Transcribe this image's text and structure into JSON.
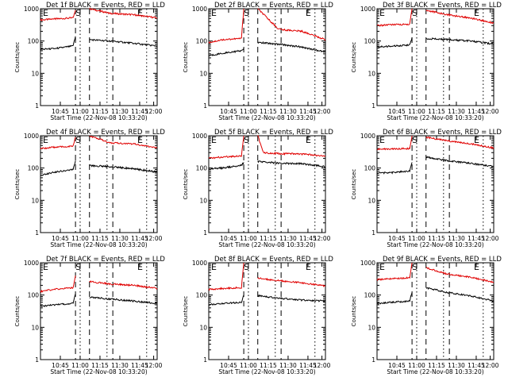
{
  "chart_data": [
    {
      "type": "line",
      "title": "Det 1f BLACK = Events, RED = LLD",
      "xlabel": "Start Time (22-Nov-08 10:33:20)",
      "ylabel": "Counts/sec",
      "yscale": "log",
      "ylim": [
        1,
        1000
      ],
      "xticks": [
        "10:45",
        "11:00",
        "11:15",
        "11:30",
        "11:45",
        "12:00"
      ],
      "yticks": [
        "1",
        "10",
        "100",
        "1000"
      ],
      "markers": [
        "E",
        "S",
        "E"
      ],
      "series": [
        {
          "name": "LLD",
          "color": "#e00000",
          "segments": [
            [
              [
                0,
                450
              ],
              [
                12,
                480
              ],
              [
                28,
                520
              ],
              [
                30,
                900
              ]
            ],
            [
              [
                42,
                1000
              ],
              [
                60,
                720
              ],
              [
                80,
                650
              ],
              [
                100,
                520
              ]
            ]
          ]
        },
        {
          "name": "Events",
          "color": "#000000",
          "segments": [
            [
              [
                0,
                55
              ],
              [
                12,
                58
              ],
              [
                28,
                70
              ],
              [
                30,
                140
              ]
            ],
            [
              [
                42,
                110
              ],
              [
                60,
                100
              ],
              [
                80,
                85
              ],
              [
                100,
                70
              ]
            ]
          ]
        }
      ]
    },
    {
      "type": "line",
      "title": "Det 2f BLACK = Events, RED = LLD",
      "xlabel": "Start Time (22-Nov-08 10:33:20)",
      "ylabel": "Counts/sec",
      "yscale": "log",
      "ylim": [
        1,
        1000
      ],
      "xticks": [
        "10:45",
        "11:00",
        "11:15",
        "11:30",
        "11:45",
        "12:00"
      ],
      "yticks": [
        "1",
        "10",
        "100",
        "1000"
      ],
      "markers": [
        "E",
        "S",
        "E"
      ],
      "series": [
        {
          "name": "LLD",
          "color": "#e00000",
          "segments": [
            [
              [
                0,
                90
              ],
              [
                12,
                110
              ],
              [
                28,
                120
              ],
              [
                30,
                1000
              ]
            ],
            [
              [
                42,
                1000
              ],
              [
                60,
                230
              ],
              [
                80,
                200
              ],
              [
                100,
                110
              ]
            ]
          ]
        },
        {
          "name": "Events",
          "color": "#000000",
          "segments": [
            [
              [
                0,
                35
              ],
              [
                12,
                42
              ],
              [
                28,
                50
              ],
              [
                30,
                60
              ]
            ],
            [
              [
                42,
                90
              ],
              [
                60,
                80
              ],
              [
                80,
                65
              ],
              [
                100,
                45
              ]
            ]
          ]
        }
      ]
    },
    {
      "type": "line",
      "title": "Det 3f BLACK = Events, RED = LLD",
      "xlabel": "Start Time (22-Nov-08 10:33:20)",
      "ylabel": "Counts/sec",
      "yscale": "log",
      "ylim": [
        1,
        1000
      ],
      "xticks": [
        "10:45",
        "11:00",
        "11:15",
        "11:30",
        "11:45",
        "12:00"
      ],
      "yticks": [
        "1",
        "10",
        "100",
        "1000"
      ],
      "markers": [
        "E",
        "S",
        "E"
      ],
      "series": [
        {
          "name": "LLD",
          "color": "#e00000",
          "segments": [
            [
              [
                0,
                300
              ],
              [
                12,
                320
              ],
              [
                28,
                330
              ],
              [
                30,
                1000
              ]
            ],
            [
              [
                42,
                900
              ],
              [
                60,
                650
              ],
              [
                80,
                520
              ],
              [
                100,
                360
              ]
            ]
          ]
        },
        {
          "name": "Events",
          "color": "#000000",
          "segments": [
            [
              [
                0,
                65
              ],
              [
                12,
                70
              ],
              [
                28,
                75
              ],
              [
                30,
                130
              ]
            ],
            [
              [
                42,
                120
              ],
              [
                60,
                110
              ],
              [
                80,
                100
              ],
              [
                100,
                80
              ]
            ]
          ]
        }
      ]
    },
    {
      "type": "line",
      "title": "Det 4f BLACK = Events, RED = LLD",
      "xlabel": "Start Time (22-Nov-08 10:33:20)",
      "ylabel": "Counts/sec",
      "yscale": "log",
      "ylim": [
        1,
        1000
      ],
      "xticks": [
        "10:45",
        "11:00",
        "11:15",
        "11:30",
        "11:45",
        "12:00"
      ],
      "yticks": [
        "1",
        "10",
        "100",
        "1000"
      ],
      "markers": [
        "E",
        "S",
        "E"
      ],
      "series": [
        {
          "name": "LLD",
          "color": "#e00000",
          "segments": [
            [
              [
                0,
                400
              ],
              [
                12,
                440
              ],
              [
                28,
                470
              ],
              [
                30,
                900
              ]
            ],
            [
              [
                42,
                1000
              ],
              [
                60,
                600
              ],
              [
                80,
                560
              ],
              [
                100,
                420
              ]
            ]
          ]
        },
        {
          "name": "Events",
          "color": "#000000",
          "segments": [
            [
              [
                0,
                60
              ],
              [
                12,
                75
              ],
              [
                28,
                90
              ],
              [
                30,
                170
              ]
            ],
            [
              [
                42,
                120
              ],
              [
                60,
                110
              ],
              [
                80,
                95
              ],
              [
                100,
                75
              ]
            ]
          ]
        }
      ]
    },
    {
      "type": "line",
      "title": "Det 5f BLACK = Events, RED = LLD",
      "xlabel": "Start Time (22-Nov-08 10:33:20)",
      "ylabel": "Counts/sec",
      "yscale": "log",
      "ylim": [
        1,
        1000
      ],
      "xticks": [
        "10:45",
        "11:00",
        "11:15",
        "11:30",
        "11:45",
        "12:00"
      ],
      "yticks": [
        "1",
        "10",
        "100",
        "1000"
      ],
      "markers": [
        "E",
        "S",
        "E"
      ],
      "series": [
        {
          "name": "LLD",
          "color": "#e00000",
          "segments": [
            [
              [
                0,
                200
              ],
              [
                12,
                220
              ],
              [
                28,
                240
              ],
              [
                30,
                1000
              ]
            ],
            [
              [
                42,
                1000
              ],
              [
                47,
                300
              ],
              [
                60,
                280
              ],
              [
                80,
                270
              ],
              [
                100,
                230
              ]
            ]
          ]
        },
        {
          "name": "Events",
          "color": "#000000",
          "segments": [
            [
              [
                0,
                95
              ],
              [
                12,
                100
              ],
              [
                28,
                120
              ],
              [
                30,
                150
              ]
            ],
            [
              [
                42,
                160
              ],
              [
                60,
                140
              ],
              [
                80,
                135
              ],
              [
                100,
                110
              ]
            ]
          ]
        }
      ]
    },
    {
      "type": "line",
      "title": "Det 6f BLACK = Events, RED = LLD",
      "xlabel": "Start Time (22-Nov-08 10:33:20)",
      "ylabel": "Counts/sec",
      "yscale": "log",
      "ylim": [
        1,
        1000
      ],
      "xticks": [
        "10:45",
        "11:00",
        "11:15",
        "11:30",
        "11:45",
        "12:00"
      ],
      "yticks": [
        "1",
        "10",
        "100",
        "1000"
      ],
      "markers": [
        "E",
        "S",
        "E"
      ],
      "series": [
        {
          "name": "LLD",
          "color": "#e00000",
          "segments": [
            [
              [
                0,
                380
              ],
              [
                12,
                390
              ],
              [
                28,
                400
              ],
              [
                30,
                1000
              ]
            ],
            [
              [
                42,
                900
              ],
              [
                60,
                700
              ],
              [
                80,
                560
              ],
              [
                100,
                420
              ]
            ]
          ]
        },
        {
          "name": "Events",
          "color": "#000000",
          "segments": [
            [
              [
                0,
                70
              ],
              [
                12,
                72
              ],
              [
                28,
                80
              ],
              [
                30,
                150
              ]
            ],
            [
              [
                42,
                220
              ],
              [
                60,
                170
              ],
              [
                80,
                140
              ],
              [
                100,
                110
              ]
            ]
          ]
        }
      ]
    },
    {
      "type": "line",
      "title": "Det 7f BLACK = Events, RED = LLD",
      "xlabel": "Start Time (22-Nov-08 10:33:20)",
      "ylabel": "Counts/sec",
      "yscale": "log",
      "ylim": [
        1,
        1000
      ],
      "xticks": [
        "10:45",
        "11:00",
        "11:15",
        "11:30",
        "11:45",
        "12:00"
      ],
      "yticks": [
        "1",
        "10",
        "100",
        "1000"
      ],
      "markers": [
        "E",
        "S",
        "E"
      ],
      "series": [
        {
          "name": "LLD",
          "color": "#e00000",
          "segments": [
            [
              [
                0,
                130
              ],
              [
                12,
                150
              ],
              [
                28,
                170
              ],
              [
                30,
                400
              ]
            ],
            [
              [
                42,
                260
              ],
              [
                60,
                220
              ],
              [
                80,
                200
              ],
              [
                100,
                160
              ]
            ]
          ]
        },
        {
          "name": "Events",
          "color": "#000000",
          "segments": [
            [
              [
                0,
                45
              ],
              [
                12,
                50
              ],
              [
                28,
                55
              ],
              [
                30,
                110
              ]
            ],
            [
              [
                42,
                85
              ],
              [
                60,
                75
              ],
              [
                80,
                65
              ],
              [
                100,
                55
              ]
            ]
          ]
        }
      ]
    },
    {
      "type": "line",
      "title": "Det 8f BLACK = Events, RED = LLD",
      "xlabel": "Start Time (22-Nov-08 10:33:20)",
      "ylabel": "Counts/sec",
      "yscale": "log",
      "ylim": [
        1,
        1000
      ],
      "xticks": [
        "10:45",
        "11:00",
        "11:15",
        "11:30",
        "11:45",
        "12:00"
      ],
      "yticks": [
        "1",
        "10",
        "100",
        "1000"
      ],
      "markers": [
        "E",
        "S",
        "E"
      ],
      "series": [
        {
          "name": "LLD",
          "color": "#e00000",
          "segments": [
            [
              [
                0,
                150
              ],
              [
                12,
                160
              ],
              [
                28,
                170
              ],
              [
                30,
                1000
              ]
            ],
            [
              [
                42,
                330
              ],
              [
                60,
                280
              ],
              [
                80,
                240
              ],
              [
                100,
                190
              ]
            ]
          ]
        },
        {
          "name": "Events",
          "color": "#000000",
          "segments": [
            [
              [
                0,
                50
              ],
              [
                12,
                55
              ],
              [
                28,
                60
              ],
              [
                30,
                100
              ]
            ],
            [
              [
                42,
                95
              ],
              [
                60,
                80
              ],
              [
                80,
                70
              ],
              [
                100,
                65
              ]
            ]
          ]
        }
      ]
    },
    {
      "type": "line",
      "title": "Det 9f BLACK = Events, RED = LLD",
      "xlabel": "Start Time (22-Nov-08 10:33:20)",
      "ylabel": "Counts/sec",
      "yscale": "log",
      "ylim": [
        1,
        1000
      ],
      "xticks": [
        "10:45",
        "11:00",
        "11:15",
        "11:30",
        "11:45",
        "12:00"
      ],
      "yticks": [
        "1",
        "10",
        "100",
        "1000"
      ],
      "markers": [
        "E",
        "S",
        "E"
      ],
      "series": [
        {
          "name": "LLD",
          "color": "#e00000",
          "segments": [
            [
              [
                0,
                300
              ],
              [
                12,
                320
              ],
              [
                28,
                340
              ],
              [
                30,
                1000
              ]
            ],
            [
              [
                42,
                700
              ],
              [
                60,
                450
              ],
              [
                80,
                360
              ],
              [
                100,
                250
              ]
            ]
          ]
        },
        {
          "name": "Events",
          "color": "#000000",
          "segments": [
            [
              [
                0,
                55
              ],
              [
                12,
                60
              ],
              [
                28,
                65
              ],
              [
                30,
                120
              ]
            ],
            [
              [
                42,
                170
              ],
              [
                60,
                120
              ],
              [
                80,
                95
              ],
              [
                100,
                65
              ]
            ]
          ]
        }
      ]
    }
  ]
}
